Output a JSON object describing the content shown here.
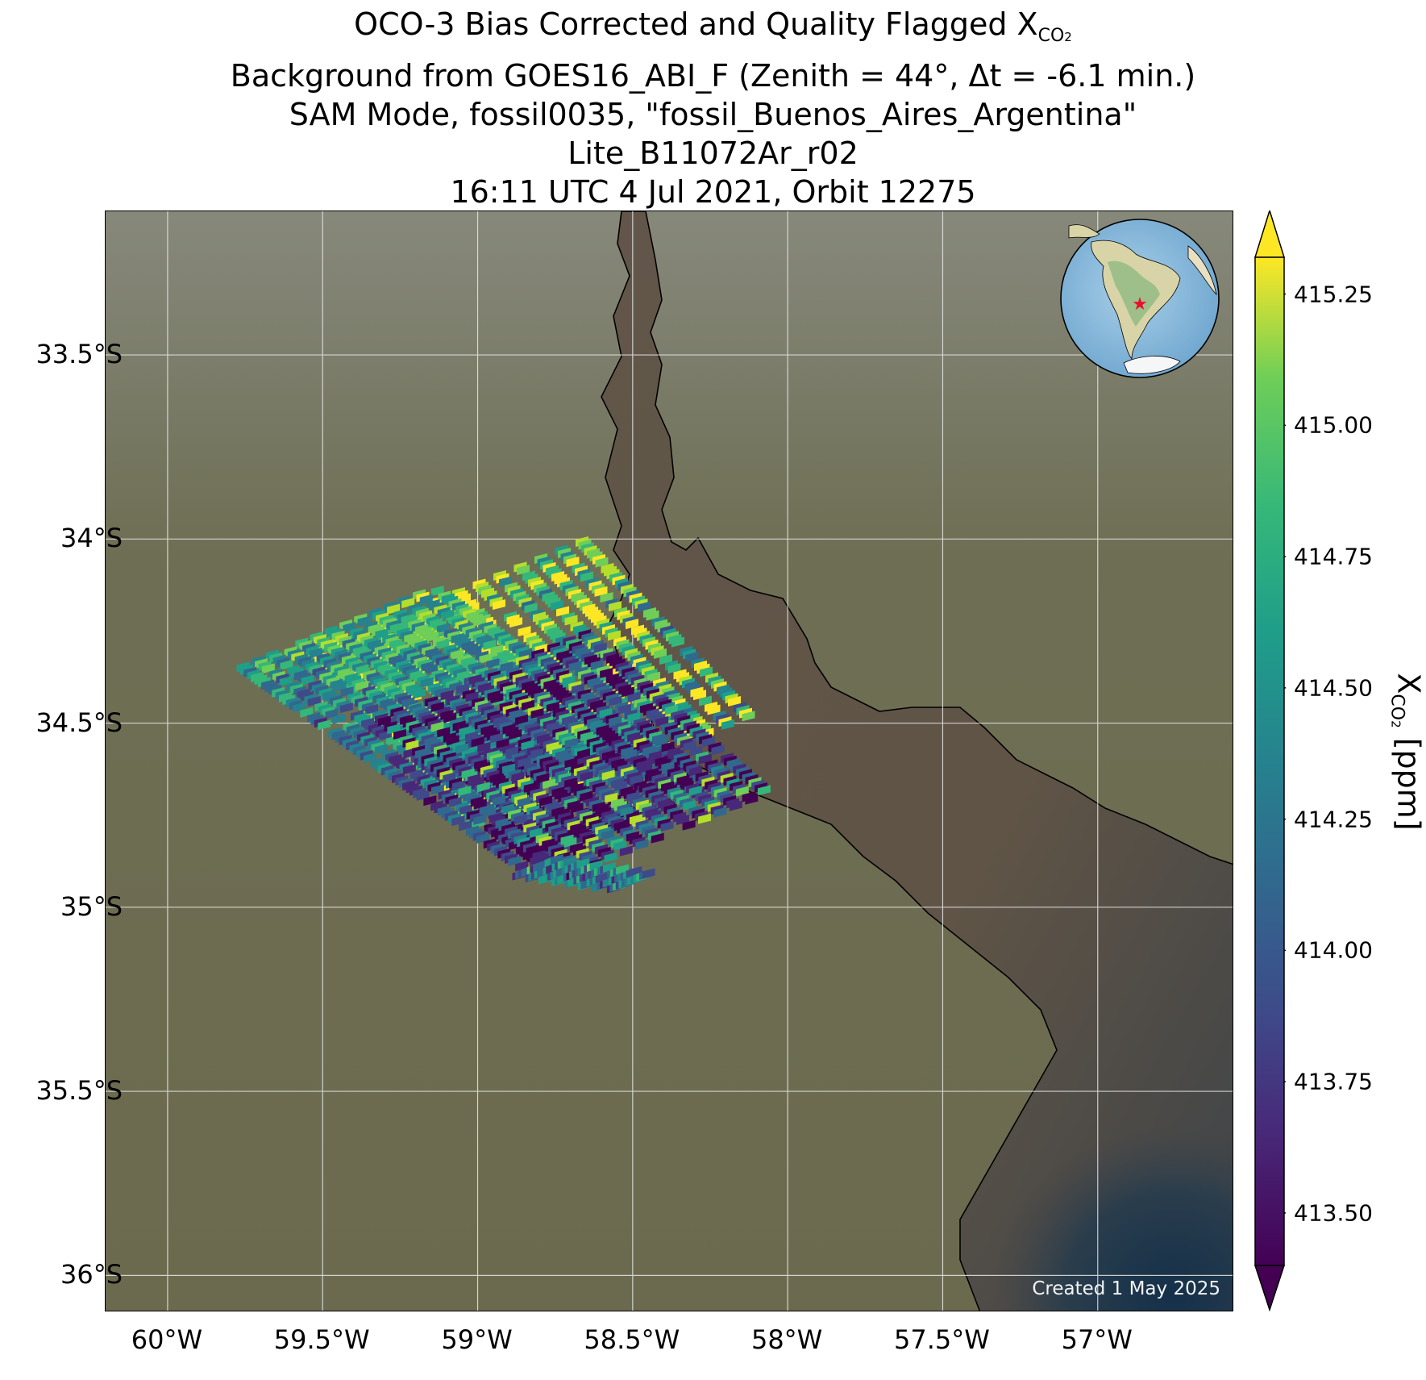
{
  "title": {
    "line1_prefix": "OCO-3 Bias Corrected and Quality Flagged X",
    "line1_sub": "CO",
    "line1_sub2": "2",
    "line2": "Background from GOES16_ABI_F (Zenith = 44°, Δt = -6.1 min.)",
    "line3": "SAM Mode, fossil0035, \"fossil_Buenos_Aires_Argentina\"",
    "line4": "Lite_B11072Ar_r02",
    "line5": "16:11 UTC 4 Jul 2021, Orbit 12275"
  },
  "axes": {
    "y_ticks": [
      "33.5°S",
      "34°S",
      "34.5°S",
      "35°S",
      "35.5°S",
      "36°S"
    ],
    "x_ticks": [
      "60°W",
      "59.5°W",
      "59°W",
      "58.5°W",
      "58°W",
      "57.5°W",
      "57°W"
    ],
    "lat_range": [
      -36.1,
      -33.11
    ],
    "lon_range": [
      -60.2,
      -56.56
    ]
  },
  "colorbar": {
    "ticks": [
      "415.25",
      "415.00",
      "414.75",
      "414.50",
      "414.25",
      "414.00",
      "413.75",
      "413.50"
    ],
    "range": [
      413.4,
      415.32
    ],
    "label_prefix": "X",
    "label_sub": "CO",
    "label_sub2": "2",
    "label_suffix": " [ppm]",
    "colormap": "viridis",
    "extend": "both"
  },
  "inset": {
    "description_icon": "globe-icon",
    "marker_color": "#e8102a"
  },
  "colors": {
    "land": "#6f6d52",
    "water": "#5d5449",
    "ocean_deep": "#1f3548",
    "grid": "#e8e8e8"
  },
  "created": "Created 1 May 2025"
}
